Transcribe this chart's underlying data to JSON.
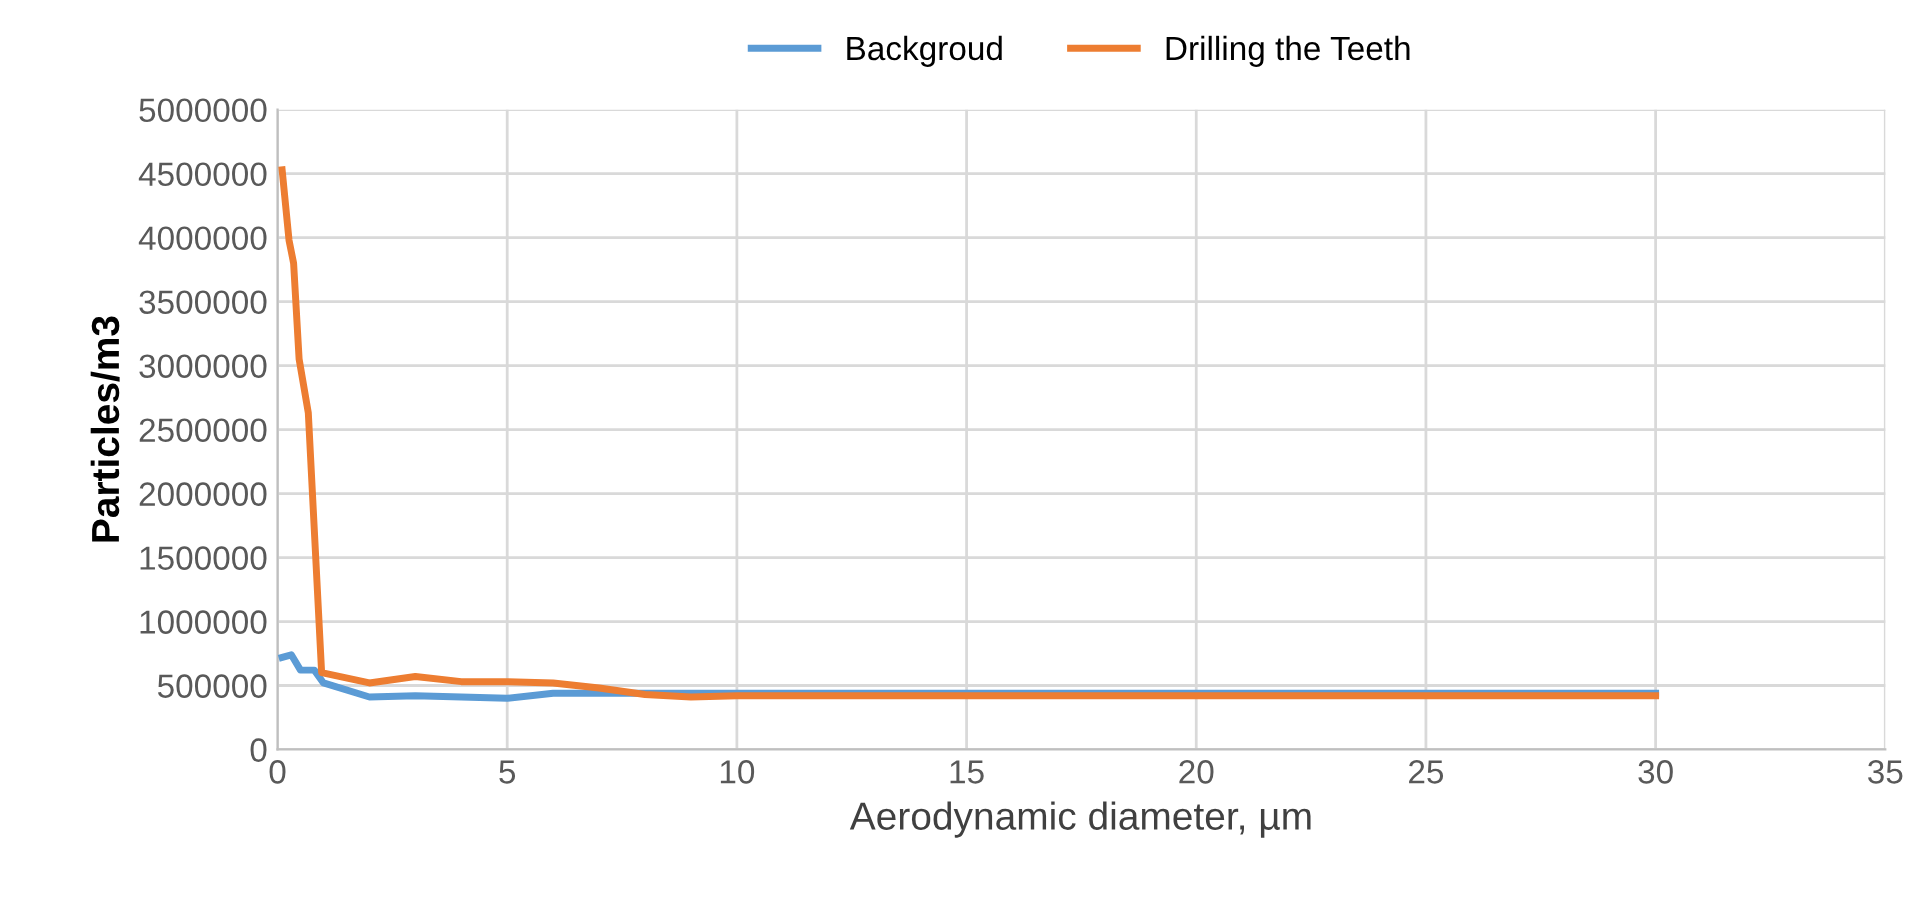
{
  "chart_data": {
    "type": "line",
    "xlabel": "Aerodynamic diameter, µm",
    "ylabel": "Particles/m3",
    "xlim": [
      0,
      35
    ],
    "xticks": [
      0,
      5,
      10,
      15,
      20,
      25,
      30,
      35
    ],
    "ylim": [
      0,
      5000000
    ],
    "yticks": [
      0,
      500000,
      1000000,
      1500000,
      2000000,
      2500000,
      3000000,
      3500000,
      4000000,
      4500000,
      5000000
    ],
    "grid": true,
    "legend": "top",
    "marker": "none",
    "line_style": "solid",
    "series": [
      {
        "name": "Backgroud",
        "color": "#5b9bd5",
        "x": [
          0.1,
          0.3,
          0.5,
          0.8,
          1,
          2,
          3,
          4,
          5,
          6,
          7,
          8,
          10,
          15,
          20,
          25,
          30
        ],
        "values": [
          720000,
          740000,
          620000,
          620000,
          520000,
          410000,
          420000,
          410000,
          400000,
          440000,
          440000,
          440000,
          440000,
          440000,
          440000,
          440000,
          440000
        ]
      },
      {
        "name": "Drilling the Teeth",
        "color": "#ed7d31",
        "x": [
          0.1,
          0.25,
          0.35,
          0.47,
          0.67,
          0.96,
          2,
          3,
          4,
          5,
          6,
          7,
          8,
          9,
          10,
          15,
          20,
          25,
          30
        ],
        "values": [
          4530000,
          3980000,
          3800000,
          3050000,
          2630000,
          600000,
          520000,
          570000,
          530000,
          530000,
          520000,
          480000,
          430000,
          410000,
          420000,
          420000,
          420000,
          420000,
          420000
        ]
      }
    ]
  }
}
